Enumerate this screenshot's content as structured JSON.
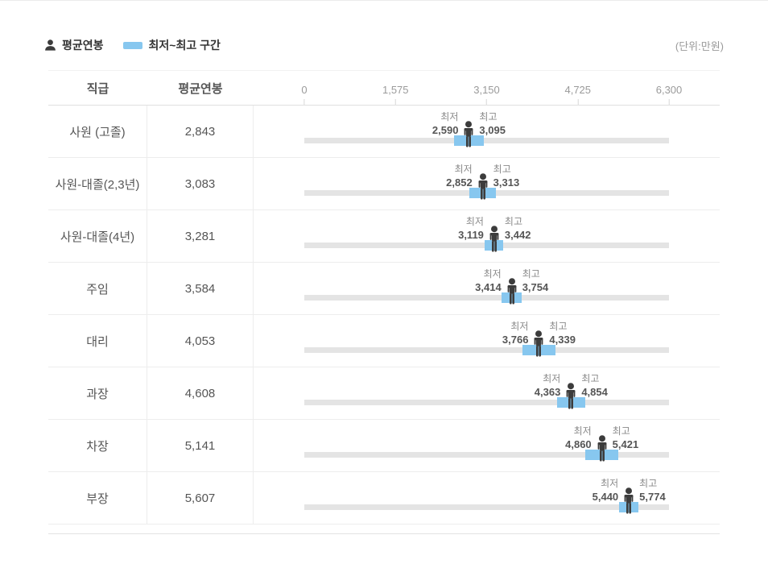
{
  "header": {
    "legend_avg_label": "평균연봉",
    "legend_range_label": "최저~최고 구간",
    "unit_note": "(단위:만원)"
  },
  "table": {
    "col_grade": "직급",
    "col_avg_salary": "평균연봉"
  },
  "colors": {
    "range_blue": "#87C7EF",
    "track_gray": "#E4E4E4",
    "person_dark": "#3C3C3C"
  },
  "chart_data": {
    "type": "bar",
    "subtype": "horizontal-range-with-average-marker",
    "unit": "만원",
    "min_caption": "최저",
    "max_caption": "최고",
    "legend_position": "top-left",
    "grid": false,
    "axis": {
      "min": 0,
      "max": 6300,
      "ticks": [
        {
          "value": 0,
          "label": "0"
        },
        {
          "value": 1575,
          "label": "1,575"
        },
        {
          "value": 3150,
          "label": "3,150"
        },
        {
          "value": 4725,
          "label": "4,725"
        },
        {
          "value": 6300,
          "label": "6,300"
        }
      ]
    },
    "rows": [
      {
        "grade": "사원 (고졸)",
        "avg": 2843,
        "avg_label": "2,843",
        "min": 2590,
        "min_label": "2,590",
        "max": 3095,
        "max_label": "3,095"
      },
      {
        "grade": "사원-대졸(2,3년)",
        "avg": 3083,
        "avg_label": "3,083",
        "min": 2852,
        "min_label": "2,852",
        "max": 3313,
        "max_label": "3,313"
      },
      {
        "grade": "사원-대졸(4년)",
        "avg": 3281,
        "avg_label": "3,281",
        "min": 3119,
        "min_label": "3,119",
        "max": 3442,
        "max_label": "3,442"
      },
      {
        "grade": "주임",
        "avg": 3584,
        "avg_label": "3,584",
        "min": 3414,
        "min_label": "3,414",
        "max": 3754,
        "max_label": "3,754"
      },
      {
        "grade": "대리",
        "avg": 4053,
        "avg_label": "4,053",
        "min": 3766,
        "min_label": "3,766",
        "max": 4339,
        "max_label": "4,339"
      },
      {
        "grade": "과장",
        "avg": 4608,
        "avg_label": "4,608",
        "min": 4363,
        "min_label": "4,363",
        "max": 4854,
        "max_label": "4,854"
      },
      {
        "grade": "차장",
        "avg": 5141,
        "avg_label": "5,141",
        "min": 4860,
        "min_label": "4,860",
        "max": 5421,
        "max_label": "5,421"
      },
      {
        "grade": "부장",
        "avg": 5607,
        "avg_label": "5,607",
        "min": 5440,
        "min_label": "5,440",
        "max": 5774,
        "max_label": "5,774"
      }
    ]
  }
}
